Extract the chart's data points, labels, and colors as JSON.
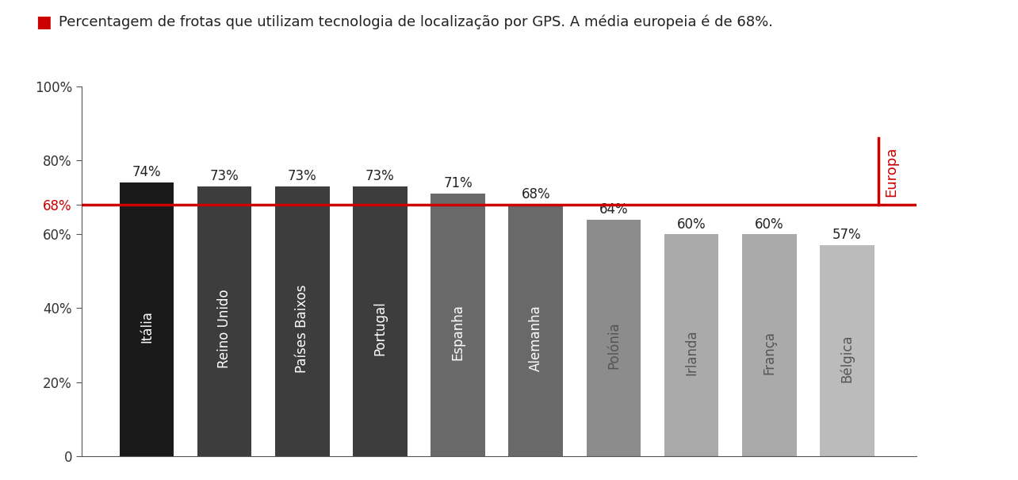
{
  "title": "Percentagem de frotas que utilizam tecnologia de localização por GPS. A média europeia é de 68%.",
  "categories": [
    "Itália",
    "Reino Unido",
    "Países Baixos",
    "Portugal",
    "Espanha",
    "Alemanha",
    "Polónia",
    "Irlanda",
    "França",
    "Bélgica"
  ],
  "values": [
    74,
    73,
    73,
    73,
    71,
    68,
    64,
    60,
    60,
    57
  ],
  "bar_colors": [
    "#1a1a1a",
    "#3d3d3d",
    "#3d3d3d",
    "#3d3d3d",
    "#696969",
    "#696969",
    "#8c8c8c",
    "#aaaaaa",
    "#aaaaaa",
    "#bbbbbb"
  ],
  "reference_line": 68,
  "reference_line_color": "#cc0000",
  "reference_text_color": "#cc0000",
  "europa_label": "Europa",
  "europa_label_color": "#cc0000",
  "legend_square_color": "#cc0000",
  "ylim": [
    0,
    100
  ],
  "yticks": [
    0,
    20,
    40,
    60,
    68,
    80,
    100
  ],
  "ytick_labels": [
    "0",
    "20%",
    "40%",
    "60%",
    "68%",
    "80%",
    "100%"
  ],
  "background_color": "#ffffff",
  "bar_label_fontsize": 12,
  "xticklabel_fontsize": 12,
  "yticklabel_fontsize": 12,
  "title_fontsize": 13,
  "bar_label_color_dark": "#ffffff",
  "bar_label_color_light": "#333333"
}
